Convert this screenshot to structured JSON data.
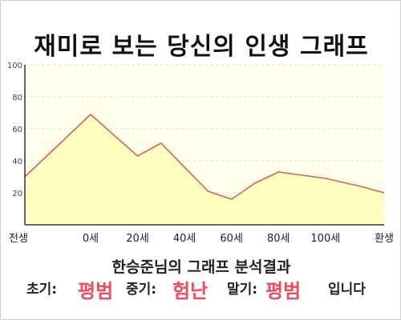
{
  "chart_data": {
    "type": "area",
    "title": "재미로 보는 당신의 인생 그래프",
    "ylim": [
      0,
      100
    ],
    "yticks": [
      20,
      40,
      60,
      80,
      100
    ],
    "x_tick_labels": [
      "전생",
      "0세",
      "20세",
      "40세",
      "60세",
      "80세",
      "100세",
      "환생"
    ],
    "x_tick_positions": [
      -28,
      0,
      20,
      40,
      60,
      80,
      100,
      125
    ],
    "xlim": [
      -28,
      125
    ],
    "grid": true,
    "series": [
      {
        "x": [
          -28,
          0,
          20,
          30,
          50,
          60,
          70,
          80,
          100,
          115,
          125
        ],
        "y": [
          30,
          69,
          43,
          51,
          21,
          16,
          26,
          33,
          29,
          24,
          20
        ]
      }
    ],
    "colors": {
      "line": "#e05c5c",
      "fill": "#ffffc0",
      "plot_bg": "#ffffeb",
      "grid": "#e0e0d0"
    }
  },
  "result": {
    "title": "한승준님의 그래프 분석결과",
    "early_label": "초기:",
    "early_value": "평범",
    "middle_label": "중기:",
    "middle_value": "험난",
    "late_label": "말기:",
    "late_value": "평범",
    "suffix": "입니다"
  }
}
